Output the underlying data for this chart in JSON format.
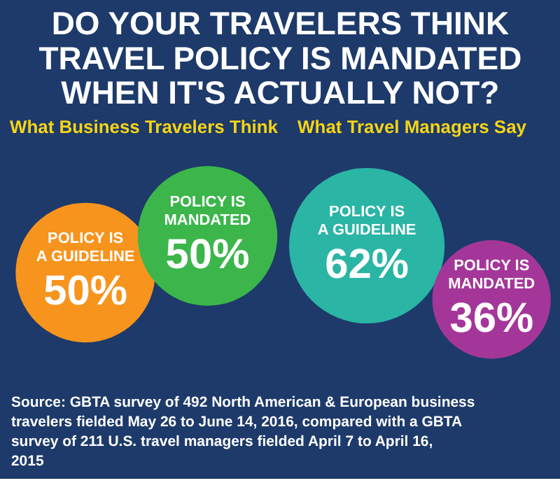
{
  "chart_data": [
    {
      "type": "other",
      "title": "DO YOUR TRAVELERS THINK TRAVEL POLICY IS MANDATED WHEN IT'S ACTUALLY NOT?",
      "subtitle": "What Business Travelers Think",
      "categories": [
        "POLICY IS A GUIDELINE",
        "POLICY IS MANDATED"
      ],
      "values": [
        50,
        50
      ],
      "value_labels": [
        "50%",
        "50%"
      ],
      "colors": [
        "#f7941d",
        "#3cb64b"
      ]
    },
    {
      "type": "other",
      "subtitle": "What Travel Managers Say",
      "categories": [
        "POLICY IS A GUIDELINE",
        "POLICY IS MANDATED"
      ],
      "values": [
        62,
        36
      ],
      "value_labels": [
        "62%",
        "36%"
      ],
      "colors": [
        "#2ab5a5",
        "#a4369a"
      ],
      "annotations": [
        "Source: GBTA survey of 492 North American & European business travelers fielded May 26 to June 14, 2016, compared with a GBTA survey of 211 U.S. travel managers fielded April 7 to April 16, 2015"
      ]
    }
  ]
}
